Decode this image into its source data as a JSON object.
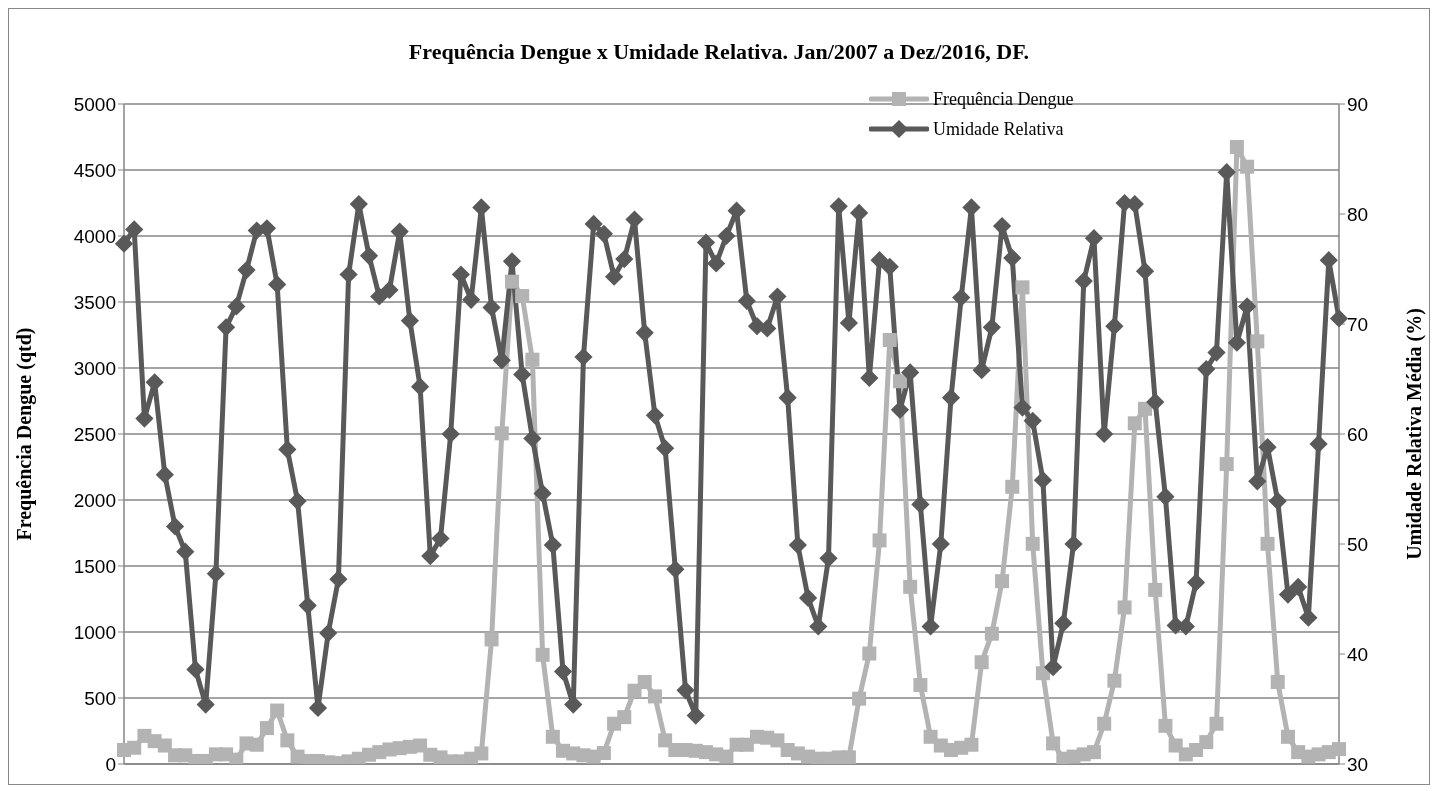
{
  "chart_data": {
    "type": "line",
    "title": "Frequência Dengue x Umidade Relativa. Jan/2007 a Dez/2016, DF.",
    "ylabel": "Frequência Dengue (qtd)",
    "y2label": "Umidade Relativa Média (%)",
    "categories": [
      null,
      null,
      null,
      null,
      null,
      null,
      null,
      null,
      null,
      null,
      null,
      null,
      null,
      null,
      null,
      null,
      null,
      null,
      null,
      null,
      null,
      null,
      null,
      null,
      null,
      null,
      null,
      null,
      null,
      null,
      null,
      null,
      null,
      null,
      null,
      null,
      null,
      null,
      null,
      null,
      null,
      null,
      null,
      null,
      null,
      null,
      null,
      null,
      null,
      null,
      null,
      null,
      null,
      null,
      null,
      null,
      null,
      null,
      null,
      null,
      null,
      null,
      null,
      null,
      null,
      null,
      null,
      null,
      null,
      null,
      null,
      null,
      null,
      null,
      null,
      null,
      null,
      null,
      null,
      null,
      null,
      null,
      null,
      null,
      null,
      null,
      null,
      null,
      null,
      null,
      null,
      null,
      null,
      null,
      null,
      null,
      null,
      null,
      null,
      null,
      null,
      null,
      null,
      null,
      null,
      null,
      null,
      null,
      null,
      null,
      null,
      null,
      null,
      null,
      null,
      null,
      null,
      null,
      null,
      null
    ],
    "series": [
      {
        "name": "Frequência Dengue",
        "color": "#b3b3b3",
        "marker": "square",
        "values": [
          106,
          123,
          213,
          173,
          140,
          66,
          66,
          23,
          23,
          73,
          73,
          33,
          156,
          146,
          272,
          405,
          179,
          56,
          23,
          23,
          13,
          7,
          20,
          40,
          70,
          90,
          110,
          120,
          130,
          140,
          70,
          50,
          20,
          20,
          40,
          80,
          944,
          2505,
          3654,
          3545,
          3063,
          827,
          206,
          100,
          80,
          66,
          56,
          83,
          305,
          355,
          555,
          621,
          512,
          179,
          106,
          106,
          100,
          90,
          73,
          56,
          146,
          146,
          206,
          199,
          179,
          106,
          80,
          56,
          40,
          40,
          50,
          50,
          495,
          837,
          1694,
          3212,
          2900,
          1342,
          598,
          206,
          140,
          106,
          123,
          146,
          771,
          987,
          1385,
          2100,
          3611,
          1668,
          688,
          156,
          40,
          56,
          73,
          90,
          305,
          631,
          1186,
          2581,
          2691,
          1319,
          289,
          140,
          73,
          106,
          166,
          305,
          2272,
          4674,
          4525,
          3202,
          1668,
          621,
          206,
          90,
          56,
          73,
          90,
          113
        ]
      },
      {
        "name": "Umidade Relativa",
        "color": "#595959",
        "marker": "diamond",
        "axis": "y2",
        "values": [
          77.3,
          78.6,
          61.4,
          64.7,
          56.3,
          51.6,
          49.3,
          38.6,
          35.4,
          47.3,
          69.7,
          71.6,
          74.9,
          78.5,
          78.7,
          73.6,
          58.6,
          53.9,
          44.4,
          35.1,
          41.9,
          46.8,
          74.5,
          80.9,
          76.2,
          72.5,
          73.1,
          78.4,
          70.3,
          64.3,
          48.9,
          50.5,
          60.0,
          74.5,
          72.2,
          80.6,
          71.5,
          66.7,
          75.7,
          65.4,
          59.6,
          54.6,
          49.9,
          38.4,
          35.4,
          67.0,
          79.1,
          78.2,
          74.3,
          75.9,
          79.5,
          69.2,
          61.7,
          58.7,
          47.7,
          36.7,
          34.4,
          77.4,
          75.5,
          78.0,
          80.3,
          72.1,
          69.8,
          69.6,
          72.5,
          63.3,
          49.9,
          45.1,
          42.5,
          48.7,
          80.7,
          70.1,
          80.1,
          65.1,
          75.8,
          75.2,
          62.2,
          65.6,
          53.6,
          42.5,
          50.0,
          63.3,
          72.4,
          80.6,
          65.8,
          69.7,
          78.9,
          76.0,
          62.4,
          61.2,
          55.8,
          38.8,
          42.8,
          50.0,
          73.9,
          77.8,
          60.0,
          69.8,
          81.0,
          80.9,
          74.8,
          62.9,
          54.3,
          42.6,
          42.5,
          46.5,
          65.9,
          67.4,
          83.8,
          68.3,
          71.6,
          55.7,
          58.8,
          53.9,
          45.4,
          46.1,
          43.3,
          59.1,
          75.8,
          70.5
        ]
      }
    ],
    "ylim": [
      0,
      5000
    ],
    "yticks": [
      0,
      500,
      1000,
      1500,
      2000,
      2500,
      3000,
      3500,
      4000,
      4500,
      5000
    ],
    "y2lim": [
      30,
      90
    ],
    "y2ticks": [
      30,
      40,
      50,
      60,
      70,
      80,
      90
    ],
    "grid": "y",
    "legend": "top right",
    "line_style": "solid"
  }
}
